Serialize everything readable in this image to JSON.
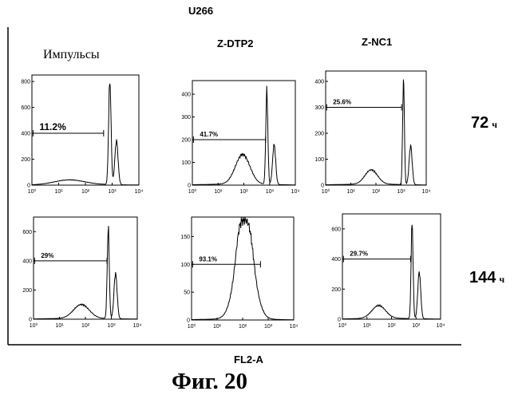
{
  "figure": {
    "cell_line": "U266",
    "column_headers": [
      "Импульсы",
      "Z-DTP2",
      "Z-NC1"
    ],
    "row_labels": [
      {
        "time": "72",
        "unit": "ч"
      },
      {
        "time": "144",
        "unit": "ч"
      }
    ],
    "x_axis_title": "FL2-A",
    "caption": "Фиг.  20"
  },
  "chart_data": [
    {
      "type": "area",
      "row": "72 ч",
      "column": "Импульсы",
      "xscale": "log",
      "xlim": [
        1,
        10000
      ],
      "ylim": [
        0,
        850
      ],
      "x_ticks": [
        "10⁰",
        "10¹",
        "10²",
        "10³",
        "10⁴"
      ],
      "y_ticks": [
        "0",
        "200",
        "400",
        "600",
        "800"
      ],
      "gate_label": "11.2%",
      "gate_x": [
        1.1,
        480
      ],
      "gate_y": 400,
      "peaks": [
        {
          "x": 25,
          "height": 35,
          "width": 0.55
        },
        {
          "x": 820,
          "height": 800,
          "width": 0.045
        },
        {
          "x": 1450,
          "height": 340,
          "width": 0.06
        }
      ],
      "baseline": 6
    },
    {
      "type": "area",
      "row": "72 ч",
      "column": "Z-DTP2",
      "xscale": "log",
      "xlim": [
        1,
        10000
      ],
      "ylim": [
        0,
        460
      ],
      "x_ticks": [
        "10⁰",
        "10¹",
        "10²",
        "10³",
        "10⁴"
      ],
      "y_ticks": [
        "0",
        "100",
        "200",
        "300",
        "400"
      ],
      "gate_label": "41.7%",
      "gate_x": [
        1.1,
        700
      ],
      "gate_y": 200,
      "peaks": [
        {
          "x": 90,
          "height": 130,
          "width": 0.28
        },
        {
          "x": 780,
          "height": 410,
          "width": 0.04
        },
        {
          "x": 1500,
          "height": 175,
          "width": 0.06
        }
      ],
      "baseline": 5
    },
    {
      "type": "area",
      "row": "72 ч",
      "column": "Z-NC1",
      "xscale": "log",
      "xlim": [
        1,
        10000
      ],
      "ylim": [
        0,
        440
      ],
      "x_ticks": [
        "10⁰",
        "10¹",
        "10²",
        "10³",
        "10⁴"
      ],
      "y_ticks": [
        "0",
        "100",
        "200",
        "300",
        "400"
      ],
      "gate_label": "25.6%",
      "gate_x": [
        1.1,
        1050
      ],
      "gate_y": 300,
      "peaks": [
        {
          "x": 65,
          "height": 55,
          "width": 0.25
        },
        {
          "x": 1250,
          "height": 405,
          "width": 0.035
        },
        {
          "x": 2400,
          "height": 150,
          "width": 0.06
        }
      ],
      "baseline": 4
    },
    {
      "type": "area",
      "row": "144 ч",
      "column": "Импульсы",
      "xscale": "log",
      "xlim": [
        1,
        10000
      ],
      "ylim": [
        0,
        700
      ],
      "x_ticks": [
        "10⁰",
        "10¹",
        "10²",
        "10³",
        "10⁴"
      ],
      "y_ticks": [
        "0",
        "200",
        "400",
        "600"
      ],
      "gate_label": "29%",
      "gate_x": [
        1.1,
        680
      ],
      "gate_y": 400,
      "peaks": [
        {
          "x": 70,
          "height": 95,
          "width": 0.3
        },
        {
          "x": 760,
          "height": 620,
          "width": 0.04
        },
        {
          "x": 1450,
          "height": 310,
          "width": 0.06
        }
      ],
      "baseline": 6
    },
    {
      "type": "area",
      "row": "144 ч",
      "column": "Z-DTP2",
      "xscale": "log",
      "xlim": [
        1,
        10000
      ],
      "ylim": [
        0,
        185
      ],
      "x_ticks": [
        "10⁰",
        "10¹",
        "10²",
        "10³",
        "10⁴"
      ],
      "y_ticks": [
        "0",
        "50",
        "100",
        "150"
      ],
      "gate_label": "93.1%",
      "gate_x": [
        1.1,
        500
      ],
      "gate_y": 100,
      "peaks": [
        {
          "x": 120,
          "height": 170,
          "width": 0.33
        },
        {
          "x": 70,
          "height": 25,
          "width": 0.12
        },
        {
          "x": 200,
          "height": 20,
          "width": 0.12
        }
      ],
      "baseline": 2
    },
    {
      "type": "area",
      "row": "144 ч",
      "column": "Z-NC1",
      "xscale": "log",
      "xlim": [
        1,
        10000
      ],
      "ylim": [
        0,
        700
      ],
      "x_ticks": [
        "10⁰",
        "10¹",
        "10²",
        "10³",
        "10⁴"
      ],
      "y_ticks": [
        "0",
        "200",
        "400",
        "600"
      ],
      "gate_label": "29.7%",
      "gate_x": [
        1.1,
        600
      ],
      "gate_y": 400,
      "peaks": [
        {
          "x": 30,
          "height": 85,
          "width": 0.28
        },
        {
          "x": 690,
          "height": 640,
          "width": 0.04
        },
        {
          "x": 1350,
          "height": 310,
          "width": 0.06
        }
      ],
      "baseline": 6
    }
  ]
}
